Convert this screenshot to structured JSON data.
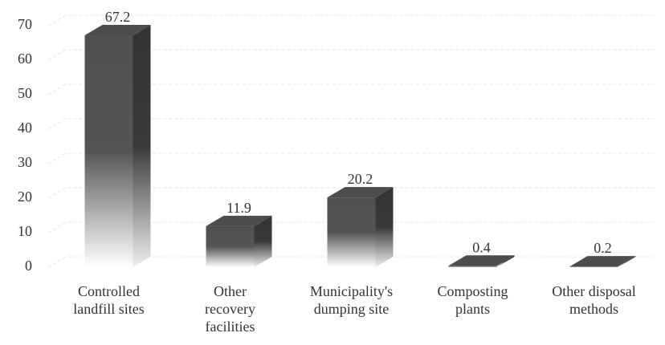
{
  "chart_data": {
    "type": "bar3d",
    "categories": [
      "Controlled\nlandfill sites",
      "Other\nrecovery\nfacilities",
      "Municipality's\ndumping site",
      "Composting\nplants",
      "Other disposal\nmethods"
    ],
    "values": [
      67.2,
      11.9,
      20.2,
      0.4,
      0.2
    ],
    "color": "#4d4d4d",
    "ylim": [
      0,
      70
    ],
    "yticks": [
      0,
      10,
      20,
      30,
      40,
      50,
      60,
      70
    ],
    "grid": true
  }
}
